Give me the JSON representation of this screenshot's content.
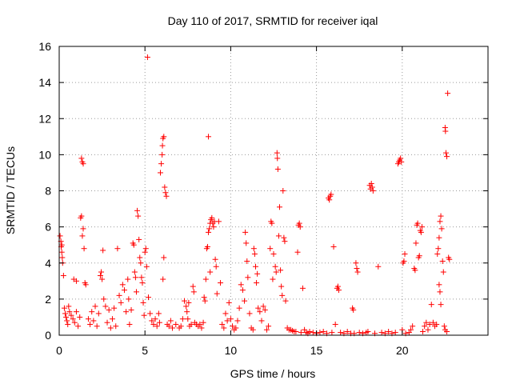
{
  "chart_data": {
    "type": "scatter",
    "title": "Day 110 of 2017, SRMTID for receiver iqal",
    "xlabel": "GPS time / hours",
    "ylabel": "SRMTID / TECUs",
    "xlim": [
      0,
      25
    ],
    "ylim": [
      0,
      16
    ],
    "xticks": [
      0,
      5,
      10,
      15,
      20
    ],
    "yticks": [
      0,
      2,
      4,
      6,
      8,
      10,
      12,
      14,
      16
    ],
    "grid": true,
    "marker": "+",
    "color": "#ff0000",
    "series": [
      {
        "name": "SRMTID",
        "points": [
          [
            0.05,
            5.5
          ],
          [
            0.1,
            5.2
          ],
          [
            0.12,
            4.9
          ],
          [
            0.15,
            4.6
          ],
          [
            0.18,
            4.3
          ],
          [
            0.2,
            4.0
          ],
          [
            0.15,
            5.0
          ],
          [
            0.25,
            3.3
          ],
          [
            0.3,
            1.5
          ],
          [
            0.35,
            1.2
          ],
          [
            0.4,
            1.0
          ],
          [
            0.45,
            0.8
          ],
          [
            0.5,
            0.6
          ],
          [
            0.55,
            1.6
          ],
          [
            0.6,
            1.3
          ],
          [
            0.7,
            1.1
          ],
          [
            0.8,
            0.9
          ],
          [
            0.85,
            3.1
          ],
          [
            0.9,
            0.7
          ],
          [
            1.0,
            3.0
          ],
          [
            1.0,
            1.3
          ],
          [
            1.1,
            0.5
          ],
          [
            1.2,
            1.0
          ],
          [
            1.25,
            6.5
          ],
          [
            1.3,
            6.6
          ],
          [
            1.3,
            9.8
          ],
          [
            1.35,
            9.6
          ],
          [
            1.4,
            9.5
          ],
          [
            1.35,
            5.5
          ],
          [
            1.4,
            5.9
          ],
          [
            1.45,
            4.8
          ],
          [
            1.5,
            2.9
          ],
          [
            1.55,
            2.8
          ],
          [
            1.7,
            0.9
          ],
          [
            1.8,
            0.6
          ],
          [
            1.9,
            1.3
          ],
          [
            2.0,
            0.8
          ],
          [
            2.1,
            1.6
          ],
          [
            2.2,
            0.5
          ],
          [
            2.3,
            1.2
          ],
          [
            2.4,
            3.3
          ],
          [
            2.45,
            3.5
          ],
          [
            2.5,
            3.1
          ],
          [
            2.55,
            4.7
          ],
          [
            2.6,
            2.0
          ],
          [
            2.7,
            1.6
          ],
          [
            2.8,
            0.7
          ],
          [
            2.9,
            1.4
          ],
          [
            3.0,
            0.4
          ],
          [
            3.1,
            0.9
          ],
          [
            3.2,
            1.5
          ],
          [
            3.3,
            0.5
          ],
          [
            3.4,
            4.8
          ],
          [
            3.5,
            2.2
          ],
          [
            3.6,
            1.8
          ],
          [
            3.7,
            2.8
          ],
          [
            3.8,
            2.5
          ],
          [
            3.9,
            1.3
          ],
          [
            4.0,
            3.1
          ],
          [
            4.05,
            2.0
          ],
          [
            4.1,
            0.6
          ],
          [
            4.2,
            1.4
          ],
          [
            4.3,
            5.1
          ],
          [
            4.35,
            5.0
          ],
          [
            4.4,
            3.5
          ],
          [
            4.45,
            3.2
          ],
          [
            4.5,
            2.4
          ],
          [
            4.55,
            6.9
          ],
          [
            4.6,
            6.6
          ],
          [
            4.65,
            5.3
          ],
          [
            4.7,
            4.3
          ],
          [
            4.75,
            4.0
          ],
          [
            4.8,
            3.2
          ],
          [
            4.85,
            2.9
          ],
          [
            4.9,
            1.8
          ],
          [
            4.95,
            1.1
          ],
          [
            5.0,
            4.6
          ],
          [
            5.05,
            4.8
          ],
          [
            5.1,
            3.8
          ],
          [
            5.15,
            15.4
          ],
          [
            5.2,
            2.1
          ],
          [
            5.3,
            1.2
          ],
          [
            5.4,
            0.8
          ],
          [
            5.5,
            0.6
          ],
          [
            5.6,
            0.9
          ],
          [
            5.7,
            0.5
          ],
          [
            5.8,
            1.2
          ],
          [
            5.85,
            0.7
          ],
          [
            5.9,
            9.0
          ],
          [
            5.95,
            9.5
          ],
          [
            6.0,
            10.0
          ],
          [
            6.02,
            10.5
          ],
          [
            6.05,
            10.9
          ],
          [
            6.1,
            11.0
          ],
          [
            6.15,
            8.2
          ],
          [
            6.2,
            7.9
          ],
          [
            6.25,
            7.7
          ],
          [
            6.1,
            4.3
          ],
          [
            6.05,
            3.1
          ],
          [
            6.3,
            0.6
          ],
          [
            6.4,
            0.5
          ],
          [
            6.5,
            0.8
          ],
          [
            6.6,
            0.4
          ],
          [
            6.8,
            0.6
          ],
          [
            7.0,
            0.4
          ],
          [
            7.1,
            0.5
          ],
          [
            7.2,
            0.9
          ],
          [
            7.3,
            1.9
          ],
          [
            7.4,
            1.6
          ],
          [
            7.45,
            1.3
          ],
          [
            7.5,
            0.9
          ],
          [
            7.55,
            1.8
          ],
          [
            7.6,
            0.5
          ],
          [
            7.7,
            0.6
          ],
          [
            7.8,
            2.7
          ],
          [
            7.85,
            2.4
          ],
          [
            7.9,
            0.7
          ],
          [
            8.0,
            0.6
          ],
          [
            8.1,
            0.5
          ],
          [
            8.2,
            0.6
          ],
          [
            8.3,
            0.4
          ],
          [
            8.4,
            0.7
          ],
          [
            8.45,
            2.1
          ],
          [
            8.5,
            1.9
          ],
          [
            8.55,
            3.1
          ],
          [
            8.6,
            4.8
          ],
          [
            8.65,
            4.9
          ],
          [
            8.7,
            5.7
          ],
          [
            8.75,
            5.9
          ],
          [
            8.8,
            6.2
          ],
          [
            8.85,
            6.4
          ],
          [
            8.9,
            6.5
          ],
          [
            8.95,
            6.2
          ],
          [
            9.0,
            6.0
          ],
          [
            9.05,
            6.3
          ],
          [
            8.7,
            11.0
          ],
          [
            8.8,
            3.5
          ],
          [
            9.1,
            4.2
          ],
          [
            9.15,
            3.8
          ],
          [
            9.2,
            2.3
          ],
          [
            9.3,
            6.3
          ],
          [
            9.4,
            2.9
          ],
          [
            9.5,
            0.6
          ],
          [
            9.6,
            0.4
          ],
          [
            9.7,
            1.2
          ],
          [
            9.8,
            0.8
          ],
          [
            9.9,
            1.8
          ],
          [
            10.0,
            0.9
          ],
          [
            10.1,
            0.5
          ],
          [
            10.2,
            0.3
          ],
          [
            10.3,
            0.4
          ],
          [
            10.4,
            0.8
          ],
          [
            10.5,
            1.5
          ],
          [
            10.6,
            2.8
          ],
          [
            10.7,
            2.5
          ],
          [
            10.8,
            1.9
          ],
          [
            10.85,
            5.7
          ],
          [
            10.9,
            5.1
          ],
          [
            10.95,
            4.1
          ],
          [
            11.0,
            3.2
          ],
          [
            11.1,
            1.2
          ],
          [
            11.2,
            0.4
          ],
          [
            11.3,
            0.3
          ],
          [
            11.35,
            4.8
          ],
          [
            11.4,
            4.5
          ],
          [
            11.45,
            3.8
          ],
          [
            11.5,
            2.9
          ],
          [
            11.55,
            3.4
          ],
          [
            11.6,
            1.5
          ],
          [
            11.7,
            1.3
          ],
          [
            11.8,
            0.8
          ],
          [
            11.9,
            1.6
          ],
          [
            12.0,
            1.4
          ],
          [
            12.1,
            0.3
          ],
          [
            12.2,
            0.5
          ],
          [
            12.3,
            4.8
          ],
          [
            12.35,
            6.3
          ],
          [
            12.4,
            6.2
          ],
          [
            12.45,
            3.1
          ],
          [
            12.5,
            4.5
          ],
          [
            12.6,
            3.8
          ],
          [
            12.65,
            3.5
          ],
          [
            12.7,
            10.1
          ],
          [
            12.72,
            9.8
          ],
          [
            12.75,
            9.2
          ],
          [
            12.8,
            5.5
          ],
          [
            12.85,
            7.1
          ],
          [
            12.9,
            3.6
          ],
          [
            12.95,
            2.7
          ],
          [
            13.0,
            2.2
          ],
          [
            13.05,
            8.0
          ],
          [
            13.1,
            5.4
          ],
          [
            13.15,
            5.2
          ],
          [
            13.2,
            1.9
          ],
          [
            13.3,
            0.4
          ],
          [
            13.4,
            0.3
          ],
          [
            13.5,
            0.3
          ],
          [
            13.6,
            0.25
          ],
          [
            13.7,
            0.2
          ],
          [
            13.8,
            0.2
          ],
          [
            13.9,
            4.6
          ],
          [
            13.95,
            6.1
          ],
          [
            14.0,
            6.2
          ],
          [
            14.05,
            6.0
          ],
          [
            14.1,
            0.15
          ],
          [
            14.2,
            2.6
          ],
          [
            14.3,
            0.3
          ],
          [
            14.4,
            0.15
          ],
          [
            14.5,
            0.1
          ],
          [
            14.6,
            0.2
          ],
          [
            14.8,
            0.15
          ],
          [
            15.0,
            0.1
          ],
          [
            15.2,
            0.15
          ],
          [
            15.4,
            0.2
          ],
          [
            15.6,
            0.1
          ],
          [
            15.7,
            7.6
          ],
          [
            15.75,
            7.5
          ],
          [
            15.8,
            7.7
          ],
          [
            15.85,
            7.8
          ],
          [
            15.9,
            0.15
          ],
          [
            16.0,
            4.9
          ],
          [
            16.1,
            0.6
          ],
          [
            16.2,
            2.6
          ],
          [
            16.25,
            2.7
          ],
          [
            16.3,
            2.5
          ],
          [
            16.4,
            0.15
          ],
          [
            16.6,
            0.1
          ],
          [
            16.8,
            0.2
          ],
          [
            17.0,
            0.1
          ],
          [
            17.1,
            1.5
          ],
          [
            17.15,
            1.4
          ],
          [
            17.2,
            0.1
          ],
          [
            17.3,
            4.0
          ],
          [
            17.35,
            3.7
          ],
          [
            17.4,
            3.5
          ],
          [
            17.5,
            0.15
          ],
          [
            17.7,
            0.1
          ],
          [
            17.9,
            0.15
          ],
          [
            18.0,
            0.2
          ],
          [
            18.1,
            8.3
          ],
          [
            18.15,
            8.1
          ],
          [
            18.2,
            8.4
          ],
          [
            18.25,
            8.2
          ],
          [
            18.3,
            8.0
          ],
          [
            18.4,
            0.1
          ],
          [
            18.6,
            3.8
          ],
          [
            18.8,
            0.15
          ],
          [
            19.0,
            0.1
          ],
          [
            19.2,
            0.2
          ],
          [
            19.4,
            0.1
          ],
          [
            19.6,
            0.15
          ],
          [
            19.75,
            9.5
          ],
          [
            19.8,
            9.6
          ],
          [
            19.85,
            9.7
          ],
          [
            19.9,
            9.8
          ],
          [
            19.95,
            9.6
          ],
          [
            20.0,
            0.3
          ],
          [
            20.05,
            4.0
          ],
          [
            20.1,
            4.1
          ],
          [
            20.15,
            4.5
          ],
          [
            20.2,
            0.1
          ],
          [
            20.4,
            0.15
          ],
          [
            20.5,
            0.3
          ],
          [
            20.6,
            0.5
          ],
          [
            20.7,
            3.7
          ],
          [
            20.75,
            3.6
          ],
          [
            20.8,
            5.1
          ],
          [
            20.85,
            6.1
          ],
          [
            20.9,
            6.2
          ],
          [
            20.95,
            4.3
          ],
          [
            21.0,
            4.4
          ],
          [
            21.05,
            5.8
          ],
          [
            21.1,
            5.7
          ],
          [
            21.15,
            6.0
          ],
          [
            21.2,
            0.2
          ],
          [
            21.3,
            0.5
          ],
          [
            21.4,
            0.7
          ],
          [
            21.5,
            0.3
          ],
          [
            21.6,
            0.6
          ],
          [
            21.7,
            1.7
          ],
          [
            21.8,
            0.7
          ],
          [
            21.9,
            0.5
          ],
          [
            22.0,
            0.6
          ],
          [
            22.05,
            4.5
          ],
          [
            22.1,
            4.8
          ],
          [
            22.15,
            5.4
          ],
          [
            22.2,
            6.3
          ],
          [
            22.25,
            6.6
          ],
          [
            22.15,
            2.8
          ],
          [
            22.2,
            2.4
          ],
          [
            22.25,
            1.7
          ],
          [
            22.3,
            5.9
          ],
          [
            22.35,
            4.1
          ],
          [
            22.4,
            3.5
          ],
          [
            22.45,
            0.5
          ],
          [
            22.5,
            11.5
          ],
          [
            22.52,
            11.3
          ],
          [
            22.55,
            10.1
          ],
          [
            22.6,
            9.9
          ],
          [
            22.65,
            13.4
          ],
          [
            22.7,
            4.3
          ],
          [
            22.75,
            4.2
          ],
          [
            22.5,
            0.3
          ],
          [
            22.6,
            0.2
          ]
        ]
      }
    ]
  }
}
